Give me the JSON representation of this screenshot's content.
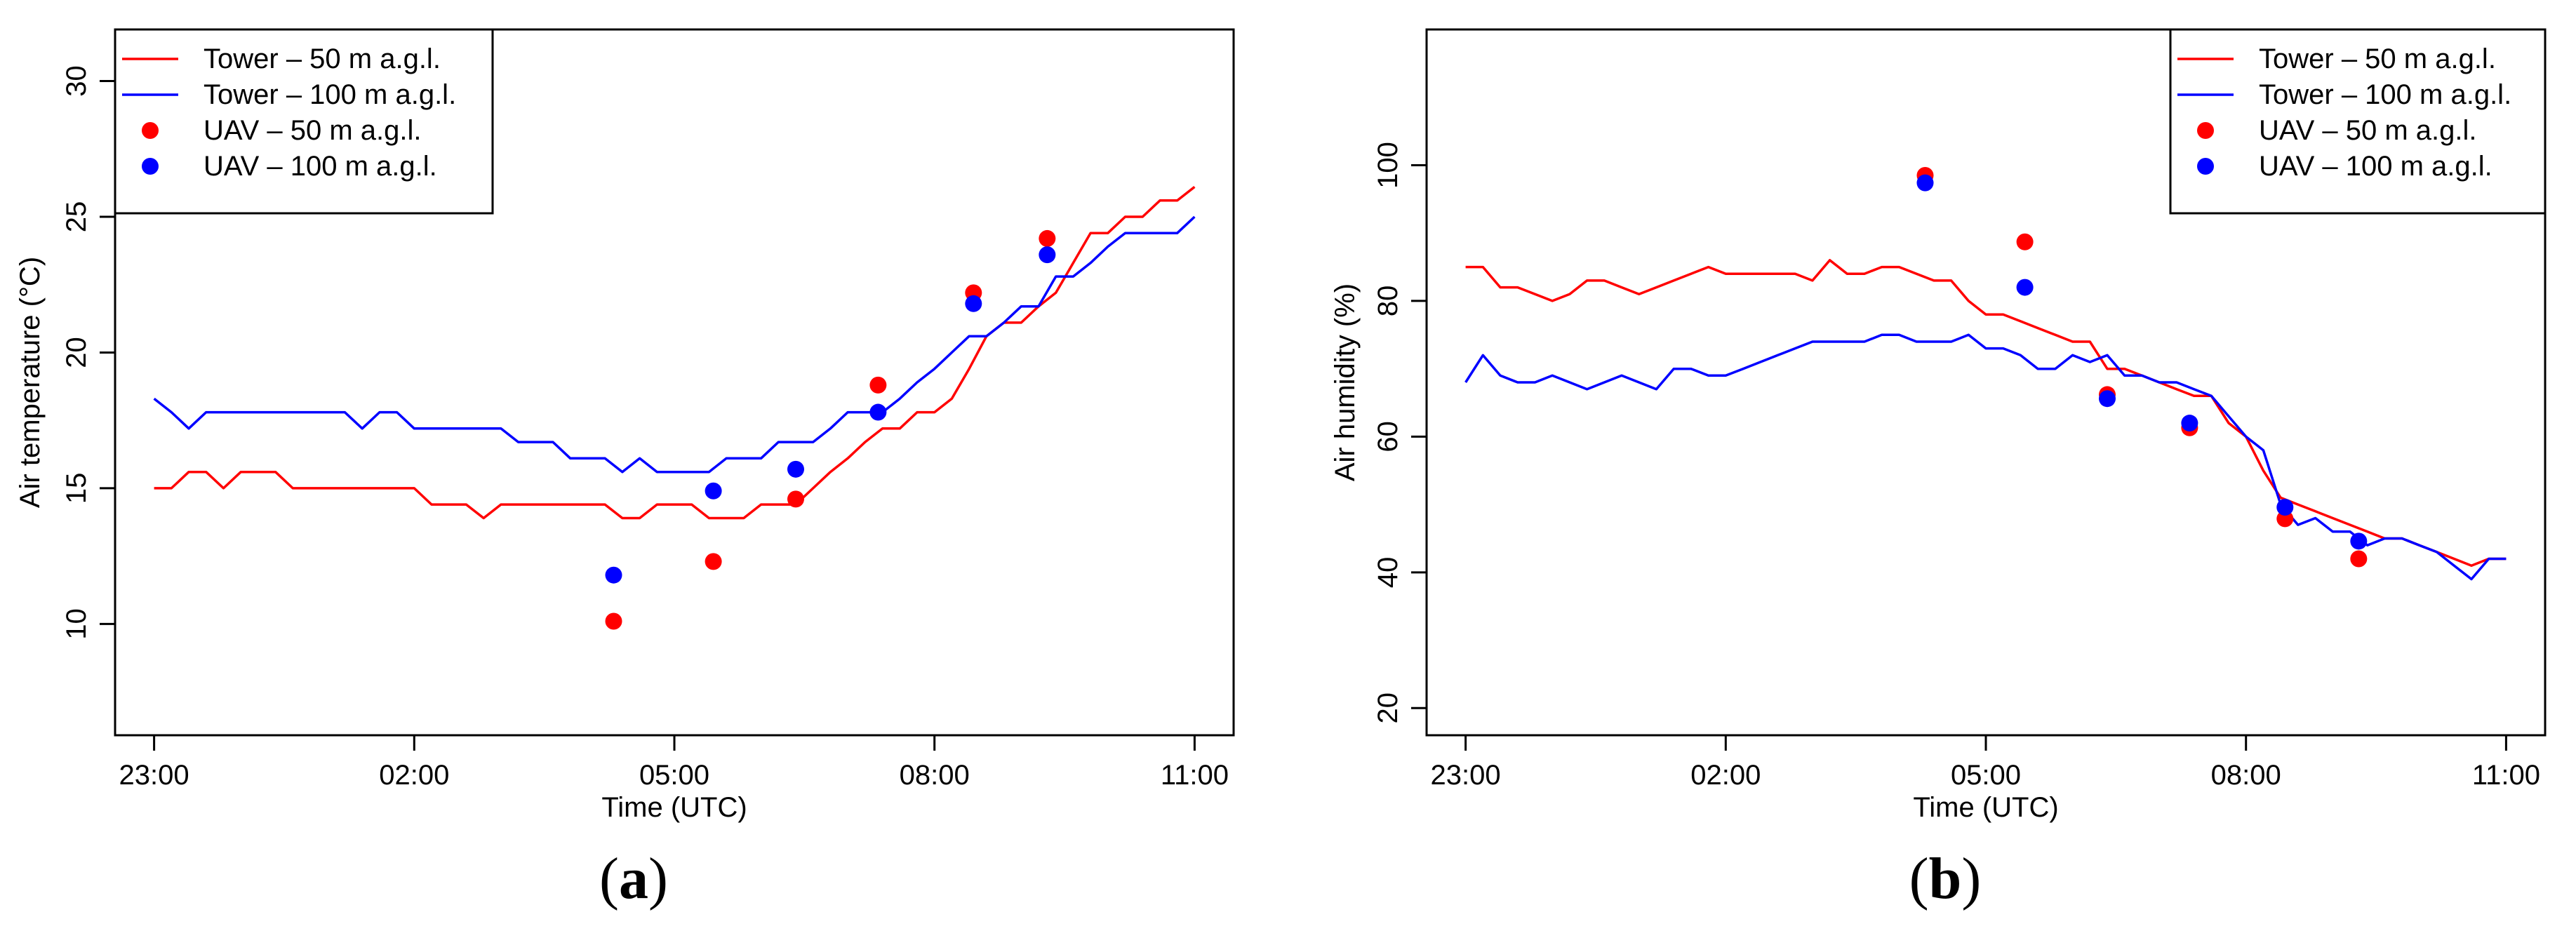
{
  "chart_data": [
    {
      "type": "line",
      "panel_label": "a",
      "xlabel": "Time (UTC)",
      "ylabel": "Air temperature (°C)",
      "x_ticks": [
        "23:00",
        "02:00",
        "05:00",
        "08:00",
        "11:00"
      ],
      "x_ticks_hours": [
        0,
        3,
        6,
        9,
        12
      ],
      "y_ticks": [
        10,
        15,
        20,
        25,
        30
      ],
      "xlim_hours_since_2300": [
        -0.45,
        12.45
      ],
      "ylim": [
        5.9,
        31.9
      ],
      "legend_position": "top-left",
      "series": [
        {
          "name": "Tower – 50 m a.g.l.",
          "kind": "line",
          "color": "#ff0000",
          "x": [
            0,
            0.2,
            0.4,
            0.6,
            0.8,
            1.0,
            1.2,
            1.4,
            1.6,
            1.8,
            2.0,
            2.2,
            2.4,
            2.6,
            2.8,
            3.0,
            3.2,
            3.4,
            3.6,
            3.8,
            4.0,
            4.2,
            4.4,
            4.6,
            4.8,
            5.0,
            5.2,
            5.4,
            5.6,
            5.8,
            6.0,
            6.2,
            6.4,
            6.6,
            6.8,
            7.0,
            7.2,
            7.4,
            7.6,
            7.8,
            8.0,
            8.2,
            8.4,
            8.6,
            8.8,
            9.0,
            9.2,
            9.4,
            9.6,
            9.8,
            10.0,
            10.2,
            10.4,
            10.6,
            10.8,
            11.0,
            11.2,
            11.4,
            11.6,
            11.8,
            12.0
          ],
          "values": [
            15.0,
            15.0,
            15.6,
            15.6,
            15.0,
            15.6,
            15.6,
            15.6,
            15.0,
            15.0,
            15.0,
            15.0,
            15.0,
            15.0,
            15.0,
            15.0,
            14.4,
            14.4,
            14.4,
            13.9,
            14.4,
            14.4,
            14.4,
            14.4,
            14.4,
            14.4,
            14.4,
            13.9,
            13.9,
            14.4,
            14.4,
            14.4,
            13.9,
            13.9,
            13.9,
            14.4,
            14.4,
            14.4,
            15.0,
            15.6,
            16.1,
            16.7,
            17.2,
            17.2,
            17.8,
            17.8,
            18.3,
            19.4,
            20.6,
            21.1,
            21.1,
            21.7,
            22.2,
            23.3,
            24.4,
            24.4,
            25.0,
            25.0,
            25.6,
            25.6,
            26.1
          ]
        },
        {
          "name": "Tower – 100 m a.g.l.",
          "kind": "line",
          "color": "#0000ff",
          "x": [
            0,
            0.2,
            0.4,
            0.6,
            0.8,
            1.0,
            1.2,
            1.4,
            1.6,
            1.8,
            2.0,
            2.2,
            2.4,
            2.6,
            2.8,
            3.0,
            3.2,
            3.4,
            3.6,
            3.8,
            4.0,
            4.2,
            4.4,
            4.6,
            4.8,
            5.0,
            5.2,
            5.4,
            5.6,
            5.8,
            6.0,
            6.2,
            6.4,
            6.6,
            6.8,
            7.0,
            7.2,
            7.4,
            7.6,
            7.8,
            8.0,
            8.2,
            8.4,
            8.6,
            8.8,
            9.0,
            9.2,
            9.4,
            9.6,
            9.8,
            10.0,
            10.2,
            10.4,
            10.6,
            10.8,
            11.0,
            11.2,
            11.4,
            11.6,
            11.8,
            12.0
          ],
          "values": [
            18.3,
            17.8,
            17.2,
            17.8,
            17.8,
            17.8,
            17.8,
            17.8,
            17.8,
            17.8,
            17.8,
            17.8,
            17.2,
            17.8,
            17.8,
            17.2,
            17.2,
            17.2,
            17.2,
            17.2,
            17.2,
            16.7,
            16.7,
            16.7,
            16.1,
            16.1,
            16.1,
            15.6,
            16.1,
            15.6,
            15.6,
            15.6,
            15.6,
            16.1,
            16.1,
            16.1,
            16.7,
            16.7,
            16.7,
            17.2,
            17.8,
            17.8,
            17.8,
            18.3,
            18.9,
            19.4,
            20.0,
            20.6,
            20.6,
            21.1,
            21.7,
            21.7,
            22.8,
            22.8,
            23.3,
            23.9,
            24.4,
            24.4,
            24.4,
            24.4,
            25.0
          ]
        },
        {
          "name": "UAV – 50 m a.g.l.",
          "kind": "points",
          "color": "#ff0000",
          "x": [
            5.3,
            6.45,
            7.4,
            8.35,
            9.45,
            10.3
          ],
          "values": [
            10.1,
            12.3,
            14.6,
            18.8,
            22.2,
            24.2
          ]
        },
        {
          "name": "UAV – 100 m a.g.l.",
          "kind": "points",
          "color": "#0000ff",
          "x": [
            5.3,
            6.45,
            7.4,
            8.35,
            9.45,
            10.3
          ],
          "values": [
            11.8,
            14.9,
            15.7,
            17.8,
            21.8,
            23.6
          ]
        }
      ]
    },
    {
      "type": "line",
      "panel_label": "b",
      "xlabel": "Time (UTC)",
      "ylabel": "Air humidity (%)",
      "x_ticks": [
        "23:00",
        "02:00",
        "05:00",
        "08:00",
        "11:00"
      ],
      "x_ticks_hours": [
        0,
        3,
        6,
        9,
        12
      ],
      "y_ticks": [
        20,
        40,
        60,
        80,
        100
      ],
      "xlim_hours_since_2300": [
        -0.45,
        12.45
      ],
      "ylim": [
        16,
        120
      ],
      "legend_position": "top-right",
      "series": [
        {
          "name": "Tower – 50 m a.g.l.",
          "kind": "line",
          "color": "#ff0000",
          "x": [
            0,
            0.2,
            0.4,
            0.6,
            0.8,
            1.0,
            1.2,
            1.4,
            1.6,
            1.8,
            2.0,
            2.2,
            2.4,
            2.6,
            2.8,
            3.0,
            3.2,
            3.4,
            3.6,
            3.8,
            4.0,
            4.2,
            4.4,
            4.6,
            4.8,
            5.0,
            5.2,
            5.4,
            5.6,
            5.8,
            6.0,
            6.2,
            6.4,
            6.6,
            6.8,
            7.0,
            7.2,
            7.4,
            7.6,
            7.8,
            8.0,
            8.2,
            8.4,
            8.6,
            8.8,
            9.0,
            9.2,
            9.4,
            9.6,
            9.8,
            10.0,
            10.2,
            10.4,
            10.6,
            10.8,
            11.0,
            11.2,
            11.4,
            11.6,
            11.8,
            12.0
          ],
          "values": [
            85,
            85,
            82,
            82,
            81,
            80,
            81,
            83,
            83,
            82,
            81,
            82,
            83,
            84,
            85,
            84,
            84,
            84,
            84,
            84,
            83,
            86,
            84,
            84,
            85,
            85,
            84,
            83,
            83,
            80,
            78,
            78,
            77,
            76,
            75,
            74,
            74,
            70,
            70,
            69,
            68,
            67,
            66,
            66,
            62,
            60,
            55,
            51,
            50,
            49,
            48,
            47,
            46,
            45,
            45,
            44,
            43,
            42,
            41,
            42,
            42
          ]
        },
        {
          "name": "Tower – 100 m a.g.l.",
          "kind": "line",
          "color": "#0000ff",
          "x": [
            0,
            0.2,
            0.4,
            0.6,
            0.8,
            1.0,
            1.2,
            1.4,
            1.6,
            1.8,
            2.0,
            2.2,
            2.4,
            2.6,
            2.8,
            3.0,
            3.2,
            3.4,
            3.6,
            3.8,
            4.0,
            4.2,
            4.4,
            4.6,
            4.8,
            5.0,
            5.2,
            5.4,
            5.6,
            5.8,
            6.0,
            6.2,
            6.4,
            6.6,
            6.8,
            7.0,
            7.2,
            7.4,
            7.6,
            7.8,
            8.0,
            8.2,
            8.4,
            8.6,
            8.8,
            9.0,
            9.2,
            9.4,
            9.6,
            9.8,
            10.0,
            10.2,
            10.4,
            10.6,
            10.8,
            11.0,
            11.2,
            11.4,
            11.6,
            11.8,
            12.0
          ],
          "values": [
            68,
            72,
            69,
            68,
            68,
            69,
            68,
            67,
            68,
            69,
            68,
            67,
            70,
            70,
            69,
            69,
            70,
            71,
            72,
            73,
            74,
            74,
            74,
            74,
            75,
            75,
            74,
            74,
            74,
            75,
            73,
            73,
            72,
            70,
            70,
            72,
            71,
            72,
            69,
            69,
            68,
            68,
            67,
            66,
            63,
            60,
            58,
            50,
            47,
            48,
            46,
            46,
            44,
            45,
            45,
            44,
            43,
            41,
            39,
            42,
            42
          ]
        },
        {
          "name": "UAV – 50 m a.g.l.",
          "kind": "points",
          "color": "#ff0000",
          "x": [
            5.3,
            6.45,
            7.4,
            8.35,
            9.45,
            10.3
          ],
          "values": [
            98.5,
            88.7,
            66.2,
            61.3,
            47.9,
            42.0
          ]
        },
        {
          "name": "UAV – 100 m a.g.l.",
          "kind": "points",
          "color": "#0000ff",
          "x": [
            5.3,
            6.45,
            7.4,
            8.35,
            9.45,
            10.3
          ],
          "values": [
            97.4,
            82.0,
            65.6,
            62.0,
            49.6,
            44.6
          ]
        }
      ]
    }
  ]
}
